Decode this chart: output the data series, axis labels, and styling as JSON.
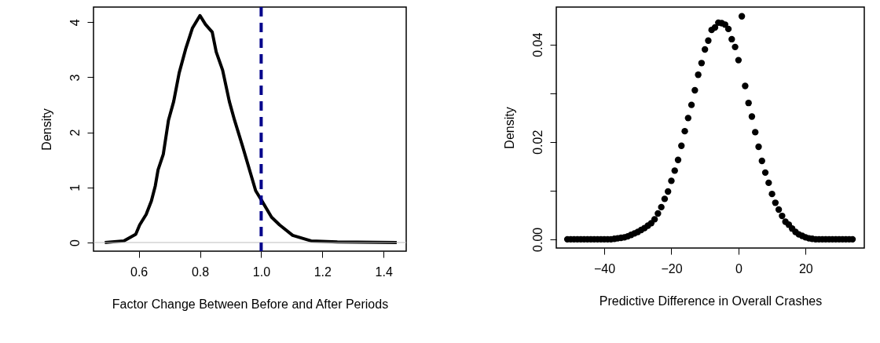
{
  "chart_data": [
    {
      "type": "line",
      "xlabel": "Factor Change Between Before and After Periods",
      "ylabel": "Density",
      "xlim": [
        0.452,
        1.474
      ],
      "xticks": [
        {
          "value": 0.6,
          "label": "0.6"
        },
        {
          "value": 0.8,
          "label": "0.8"
        },
        {
          "value": 1.0,
          "label": "1.0"
        },
        {
          "value": 1.2,
          "label": "1.2"
        },
        {
          "value": 1.4,
          "label": "1.4"
        }
      ],
      "ylim": [
        -0.157,
        4.275
      ],
      "yticks": [
        0,
        1,
        2,
        3,
        4
      ],
      "grid": false,
      "marker": "none",
      "line_style": "solid",
      "ref_lines": [
        {
          "axis": "y",
          "value": 0,
          "color": "#bebebe",
          "line_style": "solid"
        },
        {
          "axis": "x",
          "value": 1.0,
          "color": "#00008b",
          "line_style": "dashed"
        }
      ],
      "series": [
        {
          "color": "#000000",
          "x": [
            0.489,
            0.551,
            0.59,
            0.603,
            0.624,
            0.641,
            0.654,
            0.663,
            0.68,
            0.697,
            0.714,
            0.732,
            0.753,
            0.775,
            0.8,
            0.818,
            0.84,
            0.853,
            0.874,
            0.896,
            0.913,
            0.939,
            0.982,
            1.003,
            1.034,
            1.06,
            1.103,
            1.163,
            1.249,
            1.443
          ],
          "values": [
            0,
            0.03,
            0.15,
            0.32,
            0.51,
            0.75,
            1.03,
            1.32,
            1.6,
            2.22,
            2.56,
            3.08,
            3.51,
            3.89,
            4.12,
            3.96,
            3.82,
            3.46,
            3.13,
            2.56,
            2.22,
            1.75,
            0.94,
            0.75,
            0.46,
            0.32,
            0.13,
            0.03,
            0.01,
            0
          ]
        }
      ]
    },
    {
      "type": "scatter",
      "xlabel": "Predictive Difference in Overall Crashes",
      "ylabel": "Density",
      "xlim": [
        -54.3,
        37.5
      ],
      "xticks": [
        {
          "value": -40,
          "label": "−40"
        },
        {
          "value": -20,
          "label": "−20"
        },
        0,
        20
      ],
      "ylim": [
        -0.0018,
        0.0477
      ],
      "yticks": [
        {
          "value": 0,
          "label": "0.00"
        },
        {
          "value": 0.01,
          "label": null
        },
        {
          "value": 0.02,
          "label": "0.02"
        },
        {
          "value": 0.03,
          "label": null
        },
        {
          "value": 0.04,
          "label": "0.04"
        }
      ],
      "grid": false,
      "marker": "circle",
      "series": [
        {
          "color": "#000000",
          "x": [
            -51,
            -50,
            -49,
            -48,
            -47,
            -46,
            -45,
            -44,
            -43,
            -42,
            -41,
            -40,
            -39,
            -38,
            -37,
            -36,
            -35,
            -34,
            -33,
            -32,
            -31,
            -30,
            -29,
            -28,
            -27,
            -26,
            -25,
            -24,
            -23,
            -22,
            -21,
            -20,
            -19,
            -18,
            -17,
            -16,
            -15,
            -14,
            -13,
            -12,
            -11,
            -10,
            -9,
            -8,
            -7,
            -6,
            -5,
            -4,
            -3,
            -2,
            -1,
            0,
            1,
            2,
            3,
            4,
            5,
            6,
            7,
            8,
            9,
            10,
            11,
            12,
            13,
            14,
            15,
            16,
            17,
            18,
            19,
            20,
            21,
            22,
            23,
            24,
            25,
            26,
            27,
            28,
            29,
            30,
            31,
            32,
            33,
            34
          ],
          "values": [
            0,
            0,
            0,
            0,
            0,
            0,
            0,
            0,
            0,
            0,
            0,
            0,
            0,
            0,
            0.0001,
            0.0002,
            0.0003,
            0.0004,
            0.0006,
            0.0009,
            0.0012,
            0.0015,
            0.0019,
            0.0023,
            0.0028,
            0.0033,
            0.0041,
            0.0053,
            0.0066,
            0.0083,
            0.0098,
            0.012,
            0.0141,
            0.0163,
            0.0192,
            0.0222,
            0.0249,
            0.0276,
            0.0306,
            0.0338,
            0.0362,
            0.039,
            0.0408,
            0.043,
            0.0435,
            0.0445,
            0.0444,
            0.0441,
            0.0432,
            0.0411,
            0.0395,
            0.0368,
            0.0458,
            0.0315,
            0.028,
            0.0252,
            0.022,
            0.019,
            0.0161,
            0.0137,
            0.0116,
            0.0093,
            0.0075,
            0.0061,
            0.0048,
            0.0036,
            0.003,
            0.0022,
            0.0015,
            0.001,
            0.0007,
            0.0004,
            0.0002,
            0.0001,
            0,
            0,
            0,
            0,
            0,
            0,
            0,
            0,
            0,
            0,
            0,
            0
          ]
        }
      ]
    }
  ]
}
